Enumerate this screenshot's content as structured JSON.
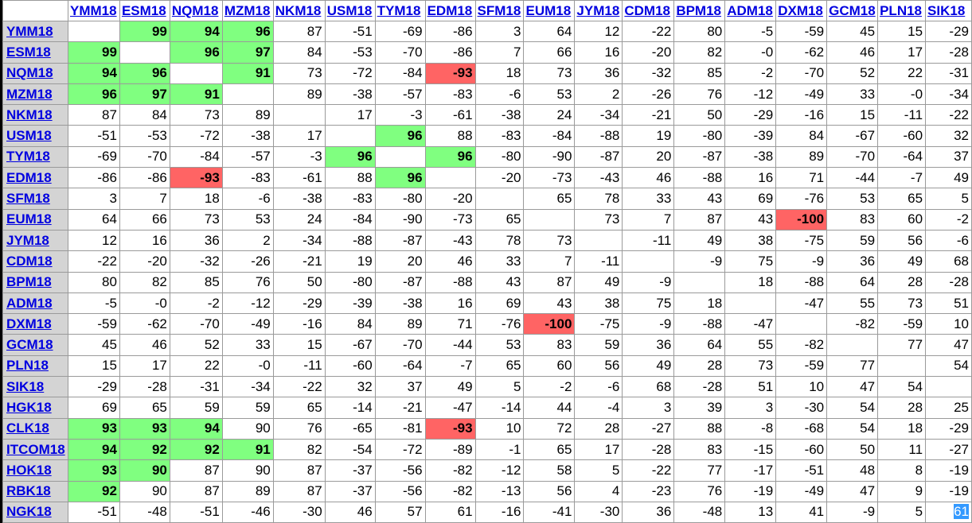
{
  "columns": [
    "YMM18",
    "ESM18",
    "NQM18",
    "MZM18",
    "NKM18",
    "USM18",
    "TYM18",
    "EDM18",
    "SFM18",
    "EUM18",
    "JYM18",
    "CDM18",
    "BPM18",
    "ADM18",
    "DXM18",
    "GCM18",
    "PLN18",
    "SIK18"
  ],
  "rows": [
    {
      "label": "YMM18",
      "values": [
        "",
        "99",
        "94",
        "96",
        "87",
        "-51",
        "-69",
        "-86",
        "3",
        "64",
        "12",
        "-22",
        "80",
        "-5",
        "-59",
        "45",
        "15",
        "-29"
      ]
    },
    {
      "label": "ESM18",
      "values": [
        "99",
        "",
        "96",
        "97",
        "84",
        "-53",
        "-70",
        "-86",
        "7",
        "66",
        "16",
        "-20",
        "82",
        "-0",
        "-62",
        "46",
        "17",
        "-28"
      ]
    },
    {
      "label": "NQM18",
      "values": [
        "94",
        "96",
        "",
        "91",
        "73",
        "-72",
        "-84",
        "-93",
        "18",
        "73",
        "36",
        "-32",
        "85",
        "-2",
        "-70",
        "52",
        "22",
        "-31"
      ]
    },
    {
      "label": "MZM18",
      "values": [
        "96",
        "97",
        "91",
        "",
        "89",
        "-38",
        "-57",
        "-83",
        "-6",
        "53",
        "2",
        "-26",
        "76",
        "-12",
        "-49",
        "33",
        "-0",
        "-34"
      ]
    },
    {
      "label": "NKM18",
      "values": [
        "87",
        "84",
        "73",
        "89",
        "",
        "17",
        "-3",
        "-61",
        "-38",
        "24",
        "-34",
        "-21",
        "50",
        "-29",
        "-16",
        "15",
        "-11",
        "-22"
      ]
    },
    {
      "label": "USM18",
      "values": [
        "-51",
        "-53",
        "-72",
        "-38",
        "17",
        "",
        "96",
        "88",
        "-83",
        "-84",
        "-88",
        "19",
        "-80",
        "-39",
        "84",
        "-67",
        "-60",
        "32"
      ]
    },
    {
      "label": "TYM18",
      "values": [
        "-69",
        "-70",
        "-84",
        "-57",
        "-3",
        "96",
        "",
        "96",
        "-80",
        "-90",
        "-87",
        "20",
        "-87",
        "-38",
        "89",
        "-70",
        "-64",
        "37"
      ]
    },
    {
      "label": "EDM18",
      "values": [
        "-86",
        "-86",
        "-93",
        "-83",
        "-61",
        "88",
        "96",
        "",
        "-20",
        "-73",
        "-43",
        "46",
        "-88",
        "16",
        "71",
        "-44",
        "-7",
        "49"
      ]
    },
    {
      "label": "SFM18",
      "values": [
        "3",
        "7",
        "18",
        "-6",
        "-38",
        "-83",
        "-80",
        "-20",
        "",
        "65",
        "78",
        "33",
        "43",
        "69",
        "-76",
        "53",
        "65",
        "5"
      ]
    },
    {
      "label": "EUM18",
      "values": [
        "64",
        "66",
        "73",
        "53",
        "24",
        "-84",
        "-90",
        "-73",
        "65",
        "",
        "73",
        "7",
        "87",
        "43",
        "-100",
        "83",
        "60",
        "-2"
      ]
    },
    {
      "label": "JYM18",
      "values": [
        "12",
        "16",
        "36",
        "2",
        "-34",
        "-88",
        "-87",
        "-43",
        "78",
        "73",
        "",
        "-11",
        "49",
        "38",
        "-75",
        "59",
        "56",
        "-6"
      ]
    },
    {
      "label": "CDM18",
      "values": [
        "-22",
        "-20",
        "-32",
        "-26",
        "-21",
        "19",
        "20",
        "46",
        "33",
        "7",
        "-11",
        "",
        "-9",
        "75",
        "-9",
        "36",
        "49",
        "68"
      ]
    },
    {
      "label": "BPM18",
      "values": [
        "80",
        "82",
        "85",
        "76",
        "50",
        "-80",
        "-87",
        "-88",
        "43",
        "87",
        "49",
        "-9",
        "",
        "18",
        "-88",
        "64",
        "28",
        "-28"
      ]
    },
    {
      "label": "ADM18",
      "values": [
        "-5",
        "-0",
        "-2",
        "-12",
        "-29",
        "-39",
        "-38",
        "16",
        "69",
        "43",
        "38",
        "75",
        "18",
        "",
        "-47",
        "55",
        "73",
        "51"
      ]
    },
    {
      "label": "DXM18",
      "values": [
        "-59",
        "-62",
        "-70",
        "-49",
        "-16",
        "84",
        "89",
        "71",
        "-76",
        "-100",
        "-75",
        "-9",
        "-88",
        "-47",
        "",
        "-82",
        "-59",
        "10"
      ]
    },
    {
      "label": "GCM18",
      "values": [
        "45",
        "46",
        "52",
        "33",
        "15",
        "-67",
        "-70",
        "-44",
        "53",
        "83",
        "59",
        "36",
        "64",
        "55",
        "-82",
        "",
        "77",
        "47"
      ]
    },
    {
      "label": "PLN18",
      "values": [
        "15",
        "17",
        "22",
        "-0",
        "-11",
        "-60",
        "-64",
        "-7",
        "65",
        "60",
        "56",
        "49",
        "28",
        "73",
        "-59",
        "77",
        "",
        "54"
      ]
    },
    {
      "label": "SIK18",
      "values": [
        "-29",
        "-28",
        "-31",
        "-34",
        "-22",
        "32",
        "37",
        "49",
        "5",
        "-2",
        "-6",
        "68",
        "-28",
        "51",
        "10",
        "47",
        "54",
        ""
      ]
    },
    {
      "label": "HGK18",
      "values": [
        "69",
        "65",
        "59",
        "59",
        "65",
        "-14",
        "-21",
        "-47",
        "-14",
        "44",
        "-4",
        "3",
        "39",
        "3",
        "-30",
        "54",
        "28",
        "25"
      ]
    },
    {
      "label": "CLK18",
      "values": [
        "93",
        "93",
        "94",
        "90",
        "76",
        "-65",
        "-81",
        "-93",
        "10",
        "72",
        "28",
        "-27",
        "88",
        "-8",
        "-68",
        "54",
        "18",
        "-29"
      ]
    },
    {
      "label": "ITCOM18",
      "values": [
        "94",
        "92",
        "92",
        "91",
        "82",
        "-54",
        "-72",
        "-89",
        "-1",
        "65",
        "17",
        "-28",
        "83",
        "-15",
        "-60",
        "50",
        "11",
        "-27"
      ]
    },
    {
      "label": "HOK18",
      "values": [
        "93",
        "90",
        "87",
        "90",
        "87",
        "-37",
        "-56",
        "-82",
        "-12",
        "58",
        "5",
        "-22",
        "77",
        "-17",
        "-51",
        "48",
        "8",
        "-19"
      ]
    },
    {
      "label": "RBK18",
      "values": [
        "92",
        "90",
        "87",
        "89",
        "87",
        "-37",
        "-56",
        "-82",
        "-13",
        "56",
        "4",
        "-23",
        "76",
        "-19",
        "-49",
        "47",
        "9",
        "-19"
      ]
    },
    {
      "label": "NGK18",
      "values": [
        "-51",
        "-48",
        "-51",
        "-46",
        "-30",
        "46",
        "57",
        "61",
        "-16",
        "-41",
        "-30",
        "36",
        "-48",
        "13",
        "41",
        "-9",
        "5",
        "61"
      ]
    }
  ],
  "cell_styles": {
    "green_color": "#80ff80",
    "red_color": "#ff6464",
    "green": [
      [
        0,
        1
      ],
      [
        0,
        2
      ],
      [
        0,
        3
      ],
      [
        1,
        0
      ],
      [
        1,
        2
      ],
      [
        1,
        3
      ],
      [
        2,
        0
      ],
      [
        2,
        1
      ],
      [
        2,
        3
      ],
      [
        3,
        0
      ],
      [
        3,
        1
      ],
      [
        3,
        2
      ],
      [
        5,
        6
      ],
      [
        6,
        5
      ],
      [
        6,
        7
      ],
      [
        7,
        6
      ],
      [
        19,
        0
      ],
      [
        19,
        1
      ],
      [
        19,
        2
      ],
      [
        20,
        0
      ],
      [
        20,
        1
      ],
      [
        20,
        2
      ],
      [
        20,
        3
      ],
      [
        21,
        0
      ],
      [
        21,
        1
      ],
      [
        22,
        0
      ]
    ],
    "red": [
      [
        2,
        7
      ],
      [
        7,
        2
      ],
      [
        9,
        14
      ],
      [
        14,
        9
      ],
      [
        19,
        7
      ]
    ],
    "selected": [
      [
        23,
        17
      ]
    ]
  }
}
